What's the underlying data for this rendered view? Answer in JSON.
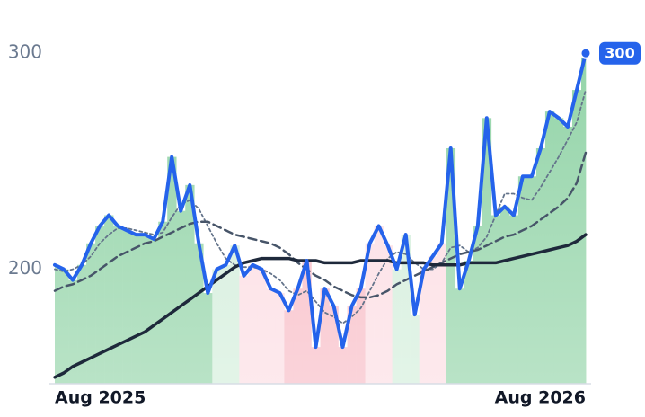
{
  "chart_data": {
    "type": "line",
    "categories": [
      "Aug 2025",
      null,
      null,
      null,
      null,
      null,
      null,
      null,
      null,
      null,
      null,
      null,
      null,
      null,
      null,
      null,
      null,
      null,
      null,
      null,
      null,
      null,
      null,
      null,
      null,
      null,
      null,
      null,
      null,
      null,
      null,
      null,
      null,
      null,
      null,
      null,
      null,
      null,
      null,
      null,
      null,
      null,
      null,
      null,
      null,
      null,
      null,
      null,
      null,
      null,
      null,
      null,
      null,
      null,
      null,
      null,
      null,
      null,
      null,
      "Aug 2026"
    ],
    "series": [
      {
        "color": "#2563eb",
        "values": [
          202,
          200,
          195,
          202,
          212,
          220,
          225,
          220,
          218,
          216,
          216,
          214,
          222,
          252,
          227,
          239,
          212,
          189,
          200,
          202,
          211,
          197,
          202,
          200,
          191,
          189,
          181,
          191,
          204,
          164,
          191,
          183,
          164,
          183,
          191,
          212,
          220,
          211,
          200,
          216,
          179,
          200,
          206,
          212,
          256,
          191,
          204,
          220,
          270,
          225,
          229,
          225,
          243,
          243,
          256,
          273,
          270,
          266,
          283,
          300
        ]
      },
      {
        "color": "#1e293b",
        "values": [
          150,
          152,
          155,
          157,
          159,
          161,
          163,
          165,
          167,
          169,
          171,
          174,
          177,
          180,
          183,
          186,
          189,
          192,
          195,
          198,
          201,
          203,
          204,
          205,
          205,
          205,
          205,
          204,
          204,
          204,
          203,
          203,
          203,
          203,
          204,
          204,
          204,
          204,
          203,
          203,
          203,
          203,
          202,
          202,
          202,
          202,
          203,
          203,
          203,
          203,
          204,
          205,
          206,
          207,
          208,
          209,
          210,
          211,
          213,
          216
        ]
      },
      {
        "color": "#475569",
        "values": [
          190,
          192,
          193,
          195,
          197,
          200,
          203,
          206,
          208,
          210,
          212,
          213,
          215,
          217,
          219,
          221,
          222,
          222,
          220,
          218,
          216,
          215,
          214,
          213,
          212,
          210,
          207,
          203,
          200,
          197,
          195,
          192,
          190,
          188,
          187,
          187,
          188,
          190,
          193,
          195,
          197,
          199,
          201,
          203,
          205,
          207,
          208,
          209,
          211,
          213,
          215,
          216,
          218,
          220,
          223,
          226,
          229,
          233,
          240,
          254
        ]
      },
      {
        "color": "#64748b",
        "values": [
          200,
          199,
          200,
          202,
          206,
          212,
          216,
          219,
          219,
          218,
          217,
          216,
          217,
          224,
          230,
          232,
          228,
          220,
          212,
          205,
          202,
          201,
          201,
          200,
          198,
          195,
          190,
          188,
          190,
          185,
          180,
          178,
          175,
          178,
          182,
          190,
          198,
          205,
          208,
          207,
          203,
          200,
          200,
          203,
          210,
          211,
          208,
          210,
          215,
          225,
          235,
          235,
          233,
          232,
          238,
          245,
          252,
          260,
          268,
          283
        ]
      }
    ],
    "area_colors": [
      "#93d4a8",
      "#93d4a8",
      "#93d4a8",
      "#93d4a8",
      "#93d4a8",
      "#93d4a8",
      "#93d4a8",
      "#93d4a8",
      "#93d4a8",
      "#93d4a8",
      "#93d4a8",
      "#93d4a8",
      "#93d4a8",
      "#93d4a8",
      "#93d4a8",
      "#93d4a8",
      "#93d4a8",
      "#93d4a8",
      "#d3eedb",
      "#d3eedb",
      "#d3eedb",
      "#fcdde3",
      "#fcdde3",
      "#fcdde3",
      "#fcdde3",
      "#fcdde3",
      "#f8bcc6",
      "#f8bcc6",
      "#f8bcc6",
      "#f8bcc6",
      "#f8bcc6",
      "#f8bcc6",
      "#f8bcc6",
      "#f8bcc6",
      "#f8bcc6",
      "#fcdde3",
      "#fcdde3",
      "#fcdde3",
      "#d3eedb",
      "#d3eedb",
      "#d3eedb",
      "#fcdde3",
      "#fcdde3",
      "#fcdde3",
      "#93d4a8",
      "#93d4a8",
      "#93d4a8",
      "#93d4a8",
      "#93d4a8",
      "#93d4a8",
      "#93d4a8",
      "#93d4a8",
      "#93d4a8",
      "#93d4a8",
      "#93d4a8",
      "#93d4a8",
      "#93d4a8",
      "#93d4a8",
      "#93d4a8",
      "#93d4a8"
    ],
    "ylim": [
      147,
      308
    ],
    "yticks": [
      200,
      300
    ],
    "grid": false
  }
}
